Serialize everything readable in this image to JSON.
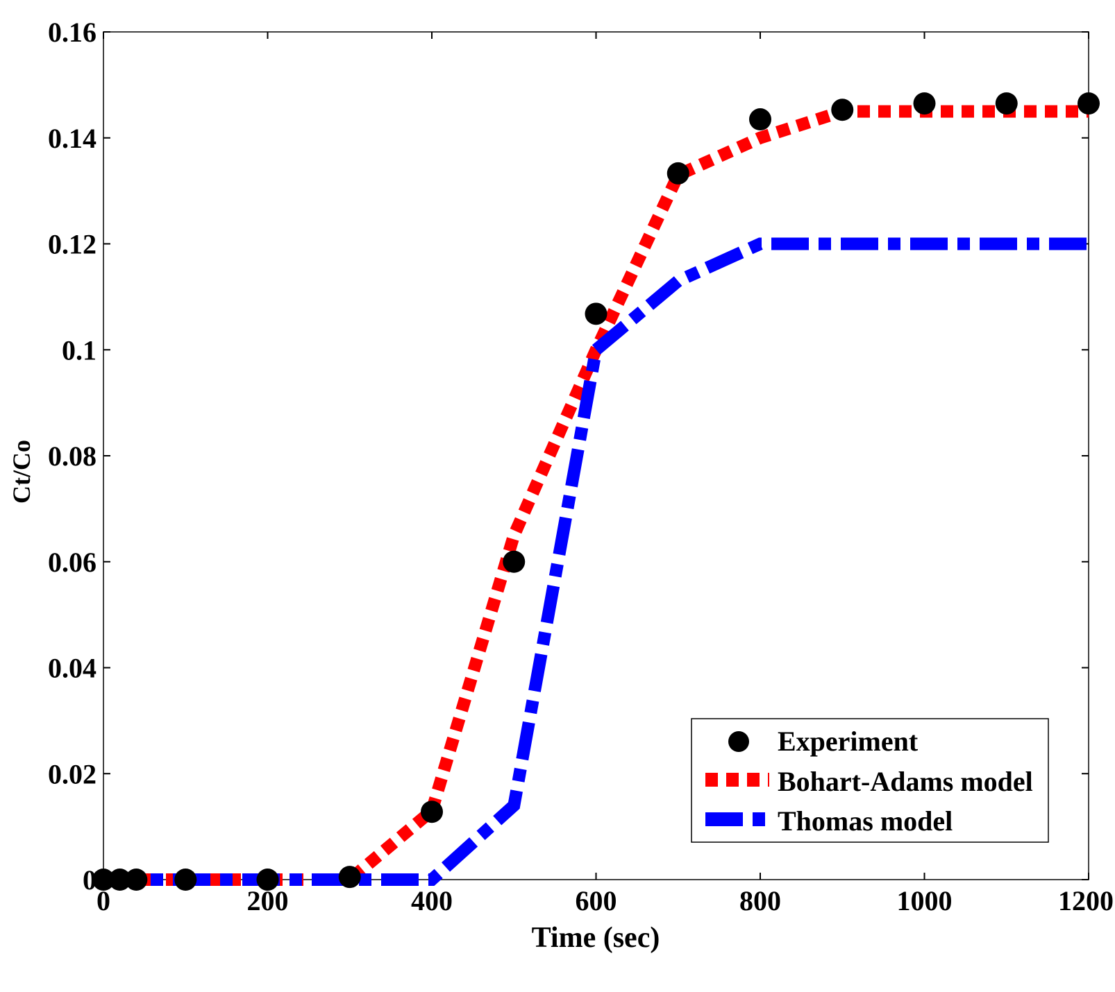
{
  "chart_data": {
    "type": "line",
    "title": "",
    "xlabel": "Time (sec)",
    "ylabel": "Ct/Co",
    "xlim": [
      0,
      1200
    ],
    "ylim": [
      0,
      0.16
    ],
    "x_ticks": [
      0,
      200,
      400,
      600,
      800,
      1000,
      1200
    ],
    "x_tick_labels": [
      "0",
      "200",
      "400",
      "600",
      "800",
      "1000",
      "1200"
    ],
    "y_ticks": [
      0,
      0.02,
      0.04,
      0.06,
      0.08,
      0.1,
      0.12,
      0.14,
      0.16
    ],
    "y_tick_labels": [
      "0",
      "0.02",
      "0.04",
      "0.06",
      "0.08",
      "0.1",
      "0.12",
      "0.14",
      "0.16"
    ],
    "grid": false,
    "legend_position": "bottom-right",
    "series": [
      {
        "name": "Experiment",
        "style": "markers",
        "color": "#000000",
        "x": [
          0,
          20,
          40,
          100,
          200,
          300,
          400,
          500,
          600,
          700,
          800,
          900,
          1000,
          1100,
          1200
        ],
        "y": [
          0,
          0,
          0,
          0,
          0,
          0.0005,
          0.0128,
          0.06,
          0.1068,
          0.1333,
          0.1435,
          0.1453,
          0.1465,
          0.1465,
          0.1465
        ]
      },
      {
        "name": "Bohart-Adams model",
        "style": "dotted",
        "color": "#ff0000",
        "x": [
          0,
          300,
          400,
          500,
          600,
          700,
          800,
          900,
          1000,
          1100,
          1200
        ],
        "y": [
          0,
          0,
          0.013,
          0.065,
          0.1,
          0.133,
          0.14,
          0.145,
          0.145,
          0.145,
          0.145
        ]
      },
      {
        "name": "Thomas model",
        "style": "dash-dot",
        "color": "#0000ff",
        "x": [
          0,
          400,
          500,
          600,
          700,
          800,
          900,
          1000,
          1100,
          1200
        ],
        "y": [
          0,
          0,
          0.014,
          0.1,
          0.113,
          0.12,
          0.12,
          0.12,
          0.12,
          0.12
        ]
      }
    ]
  }
}
